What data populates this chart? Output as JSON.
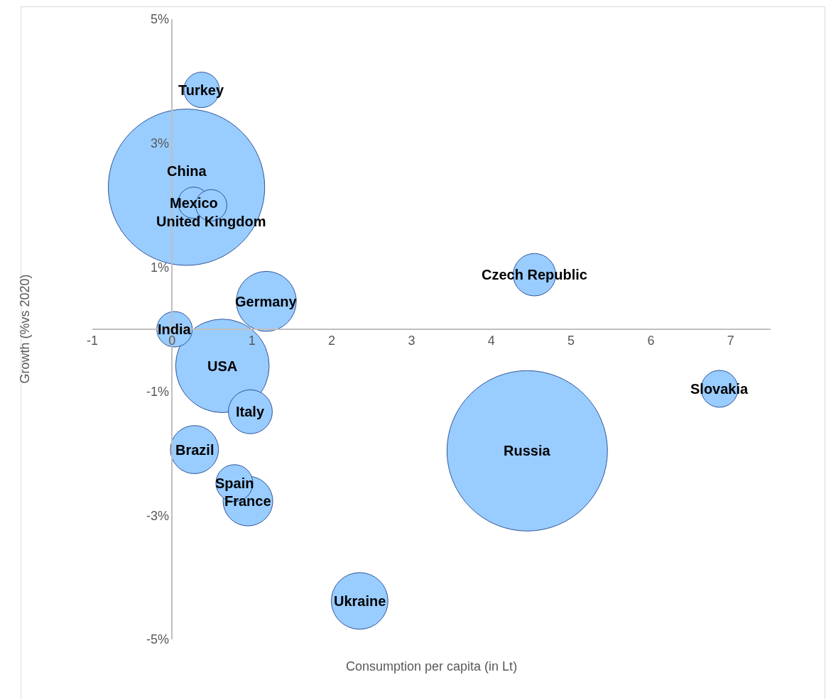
{
  "chart_data": {
    "type": "bubble",
    "xlabel": "Consumption per capita (in Lt)",
    "ylabel": "Growth (%vs 2020)",
    "xlim": [
      -1,
      7.5
    ],
    "xticks": [
      -1,
      0,
      1,
      2,
      3,
      4,
      5,
      6,
      7
    ],
    "ylim": [
      -5,
      5
    ],
    "yticks": [
      {
        "value": -5,
        "label": "-5%"
      },
      {
        "value": -3,
        "label": "-3%"
      },
      {
        "value": -1,
        "label": "-1%"
      },
      {
        "value": 1,
        "label": "1%"
      },
      {
        "value": 3,
        "label": "3%"
      },
      {
        "value": 5,
        "label": "5%"
      }
    ],
    "grid": false,
    "legend": false,
    "series": [
      {
        "name": "Russia",
        "color": "#99ccff",
        "x": [
          4.45
        ],
        "values": [
          -1.96
        ],
        "sizes": [
          1
        ]
      },
      {
        "name": "China",
        "color": "#99ccff",
        "x": [
          0.18
        ],
        "values": [
          2.29
        ],
        "sizes": [
          0.95
        ]
      },
      {
        "name": "USA",
        "color": "#99ccff",
        "x": [
          0.63
        ],
        "values": [
          -0.59
        ],
        "sizes": [
          0.34
        ]
      },
      {
        "name": "Germany",
        "color": "#99ccff",
        "x": [
          1.18
        ],
        "values": [
          0.45
        ],
        "sizes": [
          0.14
        ]
      },
      {
        "name": "Ukraine",
        "color": "#99ccff",
        "x": [
          2.35
        ],
        "values": [
          -4.38
        ],
        "sizes": [
          0.125
        ]
      },
      {
        "name": "France",
        "color": "#99ccff",
        "x": [
          0.95
        ],
        "values": [
          -2.77
        ],
        "sizes": [
          0.096
        ]
      },
      {
        "name": "Brazil",
        "color": "#99ccff",
        "x": [
          0.28
        ],
        "values": [
          -1.94
        ],
        "sizes": [
          0.09
        ]
      },
      {
        "name": "Italy",
        "color": "#99ccff",
        "x": [
          0.98
        ],
        "values": [
          -1.33
        ],
        "sizes": [
          0.075
        ]
      },
      {
        "name": "Czech Republic",
        "color": "#99ccff",
        "x": [
          4.54
        ],
        "values": [
          0.88
        ],
        "sizes": [
          0.07
        ]
      },
      {
        "name": "Slovakia",
        "color": "#99ccff",
        "x": [
          6.86
        ],
        "values": [
          -0.96
        ],
        "sizes": [
          0.053
        ]
      },
      {
        "name": "Spain",
        "color": "#99ccff",
        "x": [
          0.78
        ],
        "values": [
          -2.48
        ],
        "sizes": [
          0.053
        ]
      },
      {
        "name": "Turkey",
        "color": "#99ccff",
        "x": [
          0.37
        ],
        "values": [
          3.86
        ],
        "sizes": [
          0.049
        ]
      },
      {
        "name": "India",
        "color": "#99ccff",
        "x": [
          0.03
        ],
        "values": [
          0.0
        ],
        "sizes": [
          0.049
        ]
      },
      {
        "name": "Mexico",
        "color": "#99ccff",
        "x": [
          0.27
        ],
        "values": [
          2.04
        ],
        "sizes": [
          0.038
        ]
      },
      {
        "name": "United Kingdom",
        "color": "#99ccff",
        "x": [
          0.49
        ],
        "values": [
          2.0
        ],
        "sizes": [
          0.038
        ]
      }
    ]
  }
}
